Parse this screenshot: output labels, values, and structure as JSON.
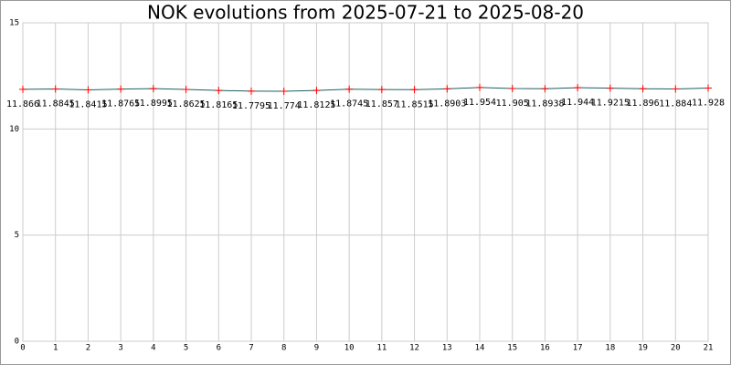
{
  "chart_data": {
    "type": "line",
    "title": "NOK evolutions from 2025-07-21 to 2025-08-20",
    "x": [
      0,
      1,
      2,
      3,
      4,
      5,
      6,
      7,
      8,
      9,
      10,
      11,
      12,
      13,
      14,
      15,
      16,
      17,
      18,
      19,
      20,
      21
    ],
    "values": [
      11.866,
      11.8845,
      11.8415,
      11.8765,
      11.8995,
      11.8625,
      11.8165,
      11.7795,
      11.774,
      11.8125,
      11.8745,
      11.857,
      11.8515,
      11.8903,
      11.954,
      11.905,
      11.8938,
      11.944,
      11.9215,
      11.896,
      11.884,
      11.928
    ],
    "color": "#1f5f5f",
    "marker_color": "#ff0000",
    "xlim": [
      0,
      21
    ],
    "xticks": [
      0,
      1,
      2,
      3,
      4,
      5,
      6,
      7,
      8,
      9,
      10,
      11,
      12,
      13,
      14,
      15,
      16,
      17,
      18,
      19,
      20,
      21
    ],
    "ylim": [
      0,
      15
    ],
    "yticks": [
      0,
      5,
      10,
      15
    ],
    "grid": true
  }
}
